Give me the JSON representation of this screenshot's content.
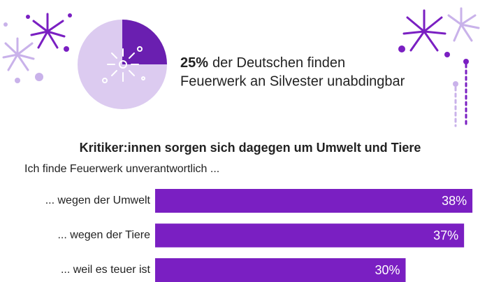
{
  "chart_data": [
    {
      "type": "pie",
      "values": [
        25,
        75
      ],
      "value_labels": [
        "25%",
        null
      ],
      "colors": [
        "#6a1fb0",
        "#dccbf0"
      ],
      "annotation": [
        "der Deutschen finden",
        "Feuerwerk an Silvester unabdingbar"
      ]
    },
    {
      "type": "hbar",
      "title": "Kritiker:innen sorgen sich dagegen um Umwelt und Tiere",
      "subtitle": "Ich finde Feuerwerk unverantwortlich ...",
      "categories": [
        "... wegen der Umwelt",
        "... wegen der Tiere",
        "... weil es teuer ist"
      ],
      "values": [
        38,
        37,
        30
      ],
      "value_labels": [
        "38%",
        "37%",
        "30%"
      ],
      "color": "#7a1fc2"
    }
  ]
}
